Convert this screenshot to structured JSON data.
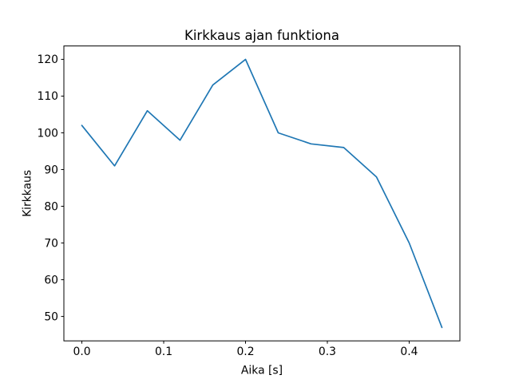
{
  "chart_data": {
    "type": "line",
    "title": "Kirkkaus ajan funktiona",
    "xlabel": "Aika [s]",
    "ylabel": "Kirkkaus",
    "x": [
      0.0,
      0.04,
      0.08,
      0.12,
      0.16,
      0.2,
      0.24,
      0.28,
      0.32,
      0.36,
      0.4,
      0.44
    ],
    "series": [
      {
        "name": "Kirkkaus",
        "values": [
          102,
          91,
          106,
          98,
          113,
          120,
          100,
          97,
          96,
          88,
          70,
          47
        ],
        "color": "#1f77b4"
      }
    ],
    "xlim": [
      -0.022,
      0.462
    ],
    "ylim": [
      43.35,
      123.65
    ],
    "xticks": [
      0.0,
      0.1,
      0.2,
      0.3,
      0.4
    ],
    "xtick_labels": [
      "0.0",
      "0.1",
      "0.2",
      "0.3",
      "0.4"
    ],
    "yticks": [
      50,
      60,
      70,
      80,
      90,
      100,
      110,
      120
    ],
    "ytick_labels": [
      "50",
      "60",
      "70",
      "80",
      "90",
      "100",
      "110",
      "120"
    ],
    "grid": false,
    "legend": "none",
    "line_width": 1.7,
    "background": "#ffffff",
    "axes_color": "#000000"
  }
}
